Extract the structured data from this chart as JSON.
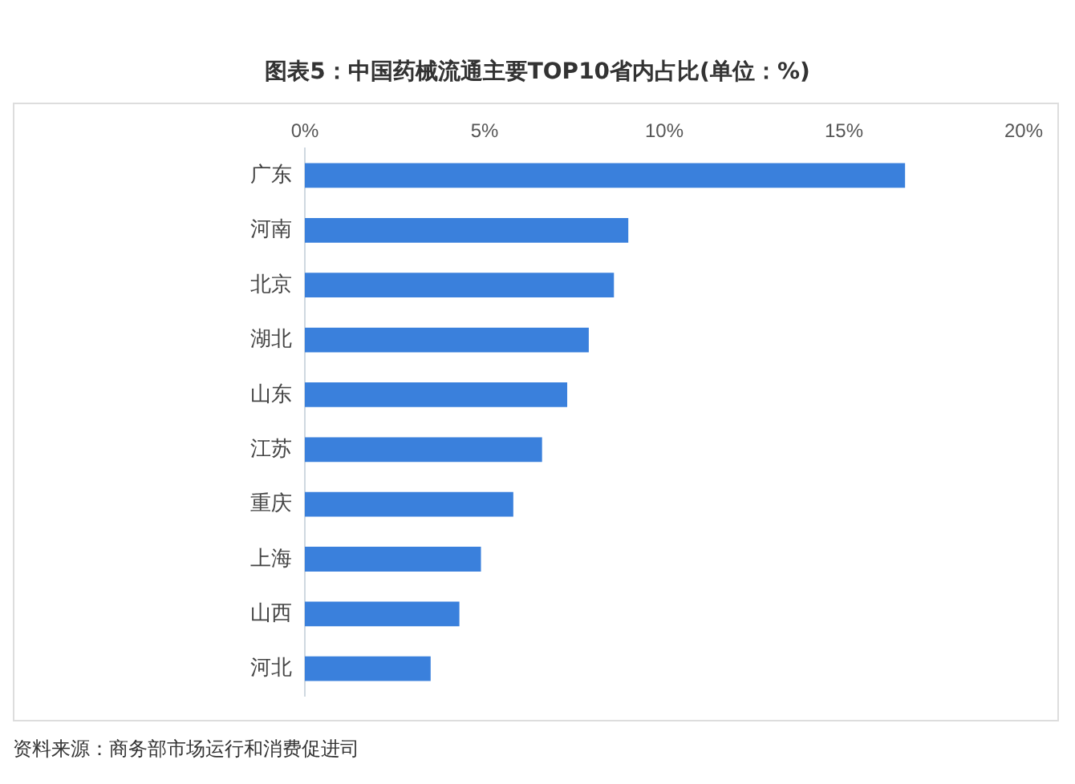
{
  "chart_data": {
    "type": "bar",
    "orientation": "horizontal",
    "title": "图表5：中国药械流通主要TOP10省内占比(单位：%)",
    "categories": [
      "广东",
      "河南",
      "北京",
      "湖北",
      "山东",
      "江苏",
      "重庆",
      "上海",
      "山西",
      "河北"
    ],
    "values": [
      16.7,
      9.0,
      8.6,
      7.9,
      7.3,
      6.6,
      5.8,
      4.9,
      4.3,
      3.5
    ],
    "color": "#3a80dc",
    "xlim": [
      0,
      20
    ],
    "xticks": [
      {
        "value": 0,
        "label": "0%"
      },
      {
        "value": 5,
        "label": "5%"
      },
      {
        "value": 10,
        "label": "10%"
      },
      {
        "value": 15,
        "label": "15%"
      },
      {
        "value": 20,
        "label": "20%"
      }
    ],
    "grid": false,
    "legend": false,
    "annotations": [
      "资料来源：商务部市场运行和消费促进司"
    ]
  }
}
